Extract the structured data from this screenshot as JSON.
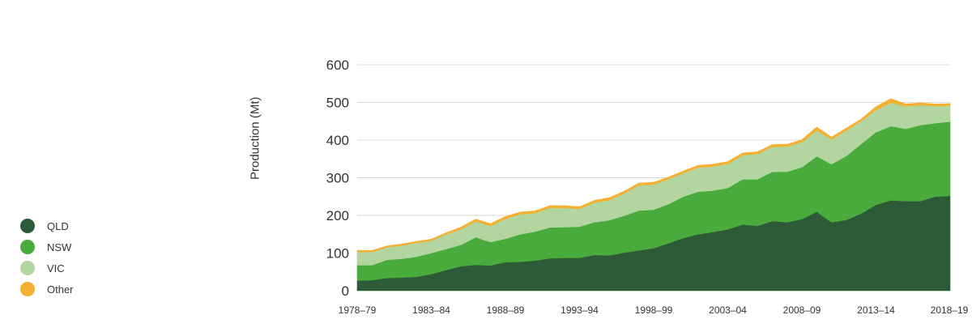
{
  "chart_data": {
    "type": "area",
    "stacked": true,
    "ylabel": "Production (Mt)",
    "xlabel": "",
    "ylim": [
      0,
      600
    ],
    "yticks": [
      0,
      100,
      200,
      300,
      400,
      500,
      600
    ],
    "grid": true,
    "legend_position": "left",
    "x": [
      "1978–79",
      "1979–80",
      "1980–81",
      "1981–82",
      "1982–83",
      "1983–84",
      "1984–85",
      "1985–86",
      "1986–87",
      "1987–88",
      "1988–89",
      "1989–90",
      "1990–91",
      "1991–92",
      "1992–93",
      "1993–94",
      "1994–95",
      "1995–96",
      "1996–97",
      "1997–98",
      "1998–99",
      "1999–00",
      "2000–01",
      "2001–02",
      "2002–03",
      "2003–04",
      "2004–05",
      "2005–06",
      "2006–07",
      "2007–08",
      "2008–09",
      "2009–10",
      "2010–11",
      "2011–12",
      "2012–13",
      "2013–14",
      "2014–15",
      "2015–16",
      "2016–17",
      "2017–18",
      "2018–19"
    ],
    "xtick_labels": [
      "1978–79",
      "1983–84",
      "1988–89",
      "1993–94",
      "1998–99",
      "2003–04",
      "2008–09",
      "2013–14",
      "2018–19"
    ],
    "xtick_indices": [
      0,
      5,
      10,
      15,
      20,
      25,
      30,
      35,
      40
    ],
    "series": [
      {
        "name": "QLD",
        "color": "#2d5a37",
        "values": [
          27,
          28,
          34,
          35,
          37,
          44,
          55,
          65,
          69,
          67,
          76,
          77,
          80,
          86,
          87,
          87,
          95,
          94,
          101,
          107,
          113,
          126,
          140,
          150,
          156,
          163,
          176,
          172,
          185,
          182,
          190,
          210,
          182,
          188,
          205,
          228,
          240,
          238,
          238,
          250,
          252
        ]
      },
      {
        "name": "NSW",
        "color": "#4aab3d",
        "values": [
          41,
          40,
          48,
          50,
          53,
          56,
          56,
          57,
          73,
          62,
          62,
          73,
          77,
          82,
          82,
          83,
          87,
          93,
          98,
          106,
          102,
          104,
          110,
          113,
          110,
          110,
          120,
          124,
          131,
          134,
          138,
          147,
          154,
          170,
          185,
          193,
          197,
          192,
          202,
          195,
          197
        ]
      },
      {
        "name": "VIC",
        "color": "#b3d6a0",
        "values": [
          35,
          35,
          33,
          35,
          37,
          33,
          39,
          41,
          42,
          43,
          53,
          53,
          49,
          52,
          51,
          47,
          52,
          54,
          59,
          67,
          67,
          66,
          62,
          64,
          64,
          64,
          64,
          67,
          66,
          67,
          67,
          68,
          66,
          68,
          60,
          59,
          62,
          60,
          53,
          45,
          42
        ]
      },
      {
        "name": "Other",
        "color": "#f4b033",
        "values": [
          4,
          4,
          4,
          4,
          4,
          4,
          4,
          6,
          6,
          6,
          6,
          6,
          6,
          6,
          6,
          6,
          6,
          6,
          6,
          6,
          6,
          6,
          6,
          6,
          6,
          6,
          6,
          6,
          6,
          6,
          6,
          10,
          6,
          6,
          6,
          9,
          11,
          6,
          6,
          6,
          6
        ]
      }
    ]
  }
}
